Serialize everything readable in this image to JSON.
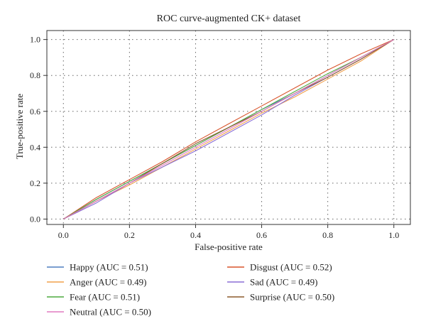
{
  "chart_data": {
    "type": "line",
    "title": "ROC curve-augmented CK+ dataset",
    "xlabel": "False-positive rate",
    "ylabel": "True-positive rate",
    "xlim": [
      -0.05,
      1.05
    ],
    "ylim": [
      -0.03,
      1.05
    ],
    "xticks": [
      0.0,
      0.2,
      0.4,
      0.6,
      0.8,
      1.0
    ],
    "xtick_labels": [
      "0.0",
      "0.2",
      "0.4",
      "0.6",
      "0.8",
      "1.0"
    ],
    "yticks": [
      0.0,
      0.2,
      0.4,
      0.6,
      0.8,
      1.0
    ],
    "ytick_labels": [
      "0.0",
      "0.2",
      "0.4",
      "0.6",
      "0.8",
      "1.0"
    ],
    "grid": true,
    "legend_position": "bottom",
    "series": [
      {
        "name": "Happy (AUC = 0.51)",
        "color": "#4f7fc0",
        "x": [
          0,
          0.1,
          0.2,
          0.3,
          0.4,
          0.5,
          0.6,
          0.7,
          0.8,
          0.9,
          1.0
        ],
        "y": [
          0,
          0.11,
          0.21,
          0.31,
          0.41,
          0.51,
          0.61,
          0.7,
          0.8,
          0.9,
          1.0
        ]
      },
      {
        "name": "Disgust (AUC = 0.52)",
        "color": "#d9542c",
        "x": [
          0,
          0.1,
          0.2,
          0.3,
          0.4,
          0.5,
          0.6,
          0.7,
          0.8,
          0.9,
          1.0
        ],
        "y": [
          0,
          0.12,
          0.22,
          0.32,
          0.43,
          0.53,
          0.63,
          0.73,
          0.83,
          0.92,
          1.0
        ]
      },
      {
        "name": "Anger (AUC = 0.49)",
        "color": "#f0a04a",
        "x": [
          0,
          0.1,
          0.2,
          0.3,
          0.4,
          0.5,
          0.6,
          0.7,
          0.8,
          0.9,
          1.0
        ],
        "y": [
          0,
          0.1,
          0.19,
          0.29,
          0.39,
          0.49,
          0.59,
          0.68,
          0.78,
          0.88,
          1.0
        ]
      },
      {
        "name": "Sad (AUC = 0.49)",
        "color": "#8a6fd6",
        "x": [
          0,
          0.1,
          0.2,
          0.3,
          0.4,
          0.5,
          0.6,
          0.7,
          0.8,
          0.9,
          1.0
        ],
        "y": [
          0,
          0.09,
          0.2,
          0.29,
          0.38,
          0.48,
          0.58,
          0.69,
          0.79,
          0.89,
          1.0
        ]
      },
      {
        "name": "Fear (AUC = 0.51)",
        "color": "#4daa3e",
        "x": [
          0,
          0.1,
          0.2,
          0.3,
          0.4,
          0.5,
          0.6,
          0.7,
          0.8,
          0.9,
          1.0
        ],
        "y": [
          0,
          0.11,
          0.21,
          0.31,
          0.41,
          0.51,
          0.61,
          0.71,
          0.81,
          0.9,
          1.0
        ]
      },
      {
        "name": "Surprise (AUC = 0.50)",
        "color": "#8b5a2b",
        "x": [
          0,
          0.1,
          0.2,
          0.3,
          0.4,
          0.5,
          0.6,
          0.7,
          0.8,
          0.9,
          1.0
        ],
        "y": [
          0,
          0.1,
          0.2,
          0.31,
          0.42,
          0.51,
          0.6,
          0.7,
          0.79,
          0.89,
          1.0
        ]
      },
      {
        "name": "Neutral (AUC = 0.50)",
        "color": "#e07ac0",
        "x": [
          0,
          0.1,
          0.2,
          0.3,
          0.4,
          0.5,
          0.6,
          0.7,
          0.8,
          0.9,
          1.0
        ],
        "y": [
          0,
          0.1,
          0.2,
          0.3,
          0.4,
          0.5,
          0.6,
          0.7,
          0.8,
          0.9,
          1.0
        ]
      }
    ]
  }
}
